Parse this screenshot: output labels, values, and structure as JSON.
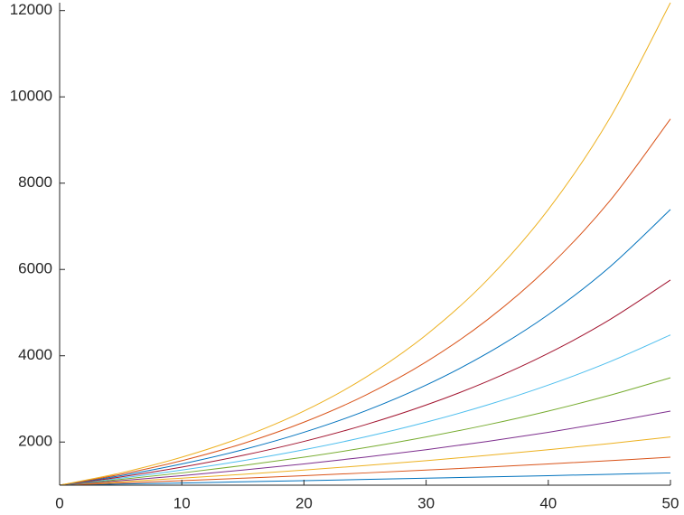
{
  "chart_data": {
    "type": "line",
    "x": [
      0,
      5,
      10,
      15,
      20,
      25,
      30,
      35,
      40,
      45,
      50
    ],
    "series": [
      {
        "color": "#0072BD",
        "values": [
          1000,
          1025,
          1051,
          1078,
          1105,
          1133,
          1162,
          1191,
          1221,
          1252,
          1284
        ]
      },
      {
        "color": "#D95319",
        "values": [
          1000,
          1051,
          1105,
          1162,
          1221,
          1284,
          1350,
          1419,
          1492,
          1568,
          1649
        ]
      },
      {
        "color": "#EDB120",
        "values": [
          1000,
          1078,
          1162,
          1252,
          1350,
          1455,
          1568,
          1690,
          1822,
          1964,
          2117
        ]
      },
      {
        "color": "#7E2F8E",
        "values": [
          1000,
          1105,
          1221,
          1350,
          1492,
          1649,
          1822,
          2014,
          2226,
          2460,
          2718
        ]
      },
      {
        "color": "#77AC30",
        "values": [
          1000,
          1133,
          1284,
          1455,
          1649,
          1868,
          2117,
          2399,
          2718,
          3080,
          3490
        ]
      },
      {
        "color": "#4DBEEE",
        "values": [
          1000,
          1162,
          1350,
          1568,
          1822,
          2117,
          2460,
          2858,
          3320,
          3857,
          4482
        ]
      },
      {
        "color": "#A2142F",
        "values": [
          1000,
          1191,
          1419,
          1690,
          2014,
          2399,
          2858,
          3404,
          4055,
          4831,
          5755
        ]
      },
      {
        "color": "#0072BD",
        "values": [
          1000,
          1221,
          1492,
          1822,
          2226,
          2718,
          3320,
          4055,
          4953,
          6050,
          7389
        ]
      },
      {
        "color": "#D95319",
        "values": [
          1000,
          1252,
          1568,
          1964,
          2460,
          3080,
          3857,
          4831,
          6050,
          7576,
          9488
        ]
      },
      {
        "color": "#EDB120",
        "values": [
          1000,
          1284,
          1649,
          2117,
          2718,
          3490,
          4482,
          5755,
          7389,
          9488,
          12182
        ]
      }
    ],
    "xlim": [
      0,
      50
    ],
    "xticks": [
      0,
      10,
      20,
      30,
      40,
      50
    ],
    "ylim": [
      1000,
      12182
    ],
    "yticks": [
      2000,
      4000,
      6000,
      8000,
      10000,
      12000
    ]
  }
}
